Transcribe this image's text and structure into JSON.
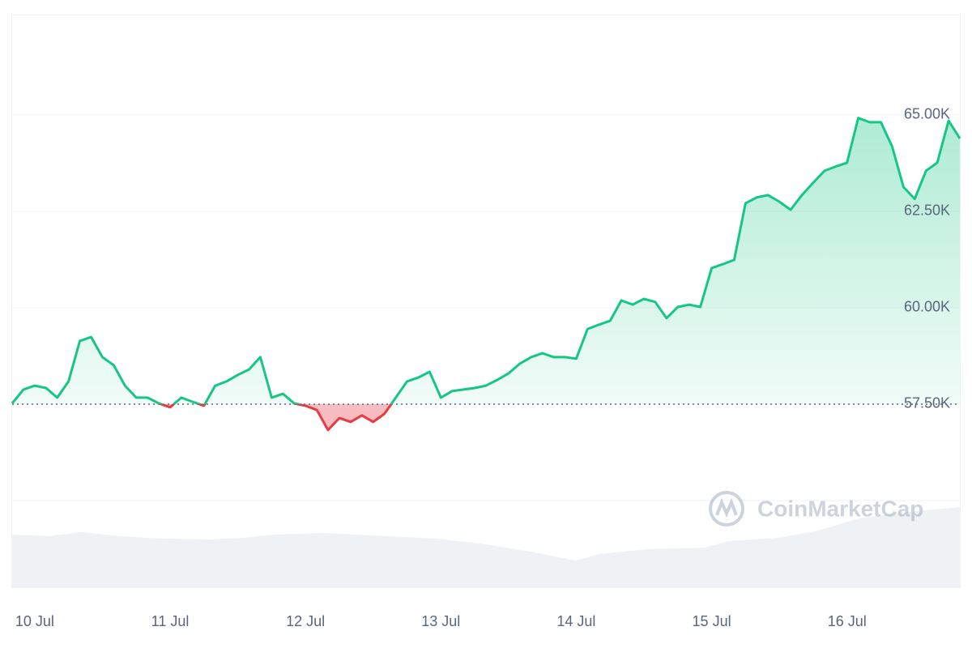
{
  "chart_data": {
    "type": "line",
    "watermark": "CoinMarketCap",
    "values": [
      57520,
      57880,
      57980,
      57920,
      57670,
      58090,
      59140,
      59240,
      58720,
      58510,
      57980,
      57670,
      57670,
      57520,
      57420,
      57670,
      57560,
      57460,
      57980,
      58090,
      58260,
      58400,
      58720,
      57670,
      57770,
      57520,
      57460,
      57350,
      56830,
      57140,
      57040,
      57210,
      57040,
      57250,
      57670,
      58090,
      58190,
      58340,
      57670,
      57840,
      57880,
      57920,
      57980,
      58130,
      58300,
      58550,
      58720,
      58820,
      58720,
      58720,
      58680,
      59450,
      59560,
      59660,
      60190,
      60080,
      60230,
      60150,
      59730,
      60020,
      60080,
      60020,
      61030,
      61130,
      61240,
      62710,
      62860,
      62920,
      62750,
      62540,
      62920,
      63240,
      63550,
      63660,
      63760,
      64920,
      64810,
      64810,
      64180,
      63130,
      62820,
      63550,
      63760,
      64850,
      64390
    ],
    "reference_value": 57500,
    "color_up": "#16c784",
    "color_down": "#ea3943",
    "xlim": [
      0,
      84
    ],
    "xticks": [
      {
        "value": 2,
        "label": "10 Jul"
      },
      {
        "value": 14,
        "label": "11 Jul"
      },
      {
        "value": 26,
        "label": "12 Jul"
      },
      {
        "value": 38,
        "label": "13 Jul"
      },
      {
        "value": 50,
        "label": "14 Jul"
      },
      {
        "value": 62,
        "label": "15 Jul"
      },
      {
        "value": 74,
        "label": "16 Jul"
      }
    ],
    "ylim": [
      55000,
      67600
    ],
    "yticks": [
      {
        "value": 57500,
        "label": "57.50K"
      },
      {
        "value": 60000,
        "label": "60.00K"
      },
      {
        "value": 62500,
        "label": "62.50K"
      },
      {
        "value": 65000,
        "label": "65.00K"
      }
    ],
    "grid": true
  }
}
